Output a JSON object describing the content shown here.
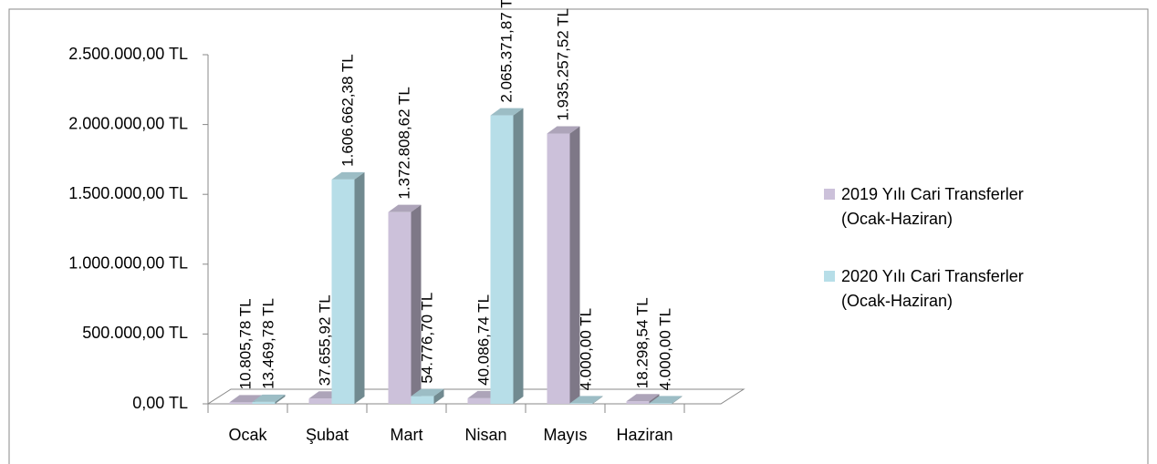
{
  "chart_data": {
    "type": "bar3d",
    "categories": [
      "Ocak",
      "Şubat",
      "Mart",
      "Nisan",
      "Mayıs",
      "Haziran"
    ],
    "series": [
      {
        "name": "2019 Yılı Cari Transferler (Ocak-Haziran)",
        "color": "#ccc1da",
        "values": [
          10805.78,
          37655.92,
          1372808.62,
          40086.74,
          1935257.52,
          18298.54
        ],
        "value_labels": [
          "10.805,78 TL",
          "37.655,92 TL",
          "1.372.808,62 TL",
          "40.086,74 TL",
          "1.935.257,52 TL",
          "18.298,54 TL"
        ]
      },
      {
        "name": "2020 Yılı Cari Transferler (Ocak-Haziran)",
        "color": "#b7dee8",
        "values": [
          13469.78,
          1606662.38,
          54776.7,
          2065371.87,
          4000.0,
          4000.0
        ],
        "value_labels": [
          "13.469,78 TL",
          "1.606.662,38 TL",
          "54.776,70 TL",
          "2.065.371,87 TL",
          "4.000,00 TL",
          "4.000,00 TL"
        ]
      }
    ],
    "ylim": [
      0,
      2500000
    ],
    "yticks": [
      {
        "value": 0,
        "label": "0,00 TL"
      },
      {
        "value": 500000,
        "label": "500.000,00 TL"
      },
      {
        "value": 1000000,
        "label": "1.000.000,00 TL"
      },
      {
        "value": 1500000,
        "label": "1.500.000,00 TL"
      },
      {
        "value": 2000000,
        "label": "2.000.000,00 TL"
      },
      {
        "value": 2500000,
        "label": "2.500.000,00 TL"
      }
    ],
    "legend": "right"
  }
}
